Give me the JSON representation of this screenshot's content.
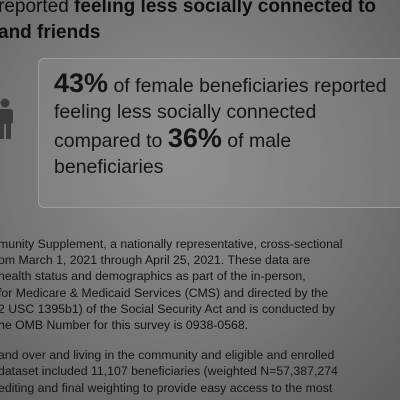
{
  "headline": {
    "line1_prefix": "reported ",
    "line1_bold": "feeling less socially connected to",
    "line2": "and friends"
  },
  "stat": {
    "female_pct": "43%",
    "line1_rest": " of female beneficiaries reported",
    "line2": "feeling less socially connected",
    "line3_prefix": "compared to ",
    "male_pct": "36%",
    "line3_rest": " of male",
    "line4": "beneficiaries"
  },
  "body": {
    "p1": [
      "munity Supplement, a nationally representative, cross-sectional",
      "om March 1, 2021 through April 25, 2021. These data are",
      "health status and demographics as part of the in-person,",
      " for Medicare & Medicaid Services (CMS) and directed by the",
      "2 USC 1395b1) of the Social Security Act and is conducted by",
      "he OMB Number for this survey is 0938-0568."
    ],
    "p2": [
      "and over and living in the community and eligible and enrolled",
      "dataset included 11,107 beneficiaries (weighted N=57,387,274",
      "editing and final weighting to provide easy access to the most"
    ]
  },
  "icons": {
    "person": "person-icon"
  }
}
